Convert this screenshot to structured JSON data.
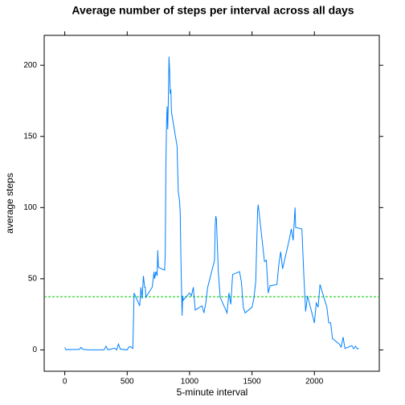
{
  "chart_data": {
    "type": "line",
    "title": "Average number of steps per interval across all days",
    "x_label": "5-minute interval",
    "y_label": "average steps",
    "x": [
      0,
      10,
      20,
      30,
      40,
      50,
      100,
      115,
      130,
      145,
      200,
      215,
      230,
      245,
      300,
      315,
      330,
      345,
      400,
      415,
      430,
      445,
      500,
      515,
      530,
      545,
      550,
      555,
      600,
      610,
      620,
      630,
      640,
      645,
      650,
      700,
      710,
      715,
      720,
      730,
      740,
      745,
      750,
      800,
      805,
      810,
      815,
      820,
      825,
      830,
      835,
      840,
      845,
      850,
      855,
      900,
      905,
      910,
      915,
      920,
      925,
      930,
      935,
      940,
      945,
      950,
      1000,
      1015,
      1030,
      1045,
      1100,
      1115,
      1130,
      1145,
      1200,
      1205,
      1210,
      1215,
      1230,
      1245,
      1300,
      1315,
      1330,
      1345,
      1400,
      1415,
      1430,
      1445,
      1500,
      1515,
      1530,
      1545,
      1550,
      1600,
      1615,
      1630,
      1645,
      1700,
      1715,
      1730,
      1745,
      1800,
      1815,
      1830,
      1845,
      1850,
      1900,
      1915,
      1930,
      1945,
      2000,
      2015,
      2030,
      2045,
      2100,
      2115,
      2130,
      2145,
      2200,
      2215,
      2230,
      2245,
      2300,
      2315,
      2330,
      2345,
      2355
    ],
    "series": [
      {
        "name": "average steps",
        "color": "#0080ff",
        "values": [
          1.7,
          0.1,
          0.1,
          0.5,
          0,
          0.3,
          0.3,
          0.3,
          1.8,
          0.4,
          0,
          0,
          0,
          0,
          0,
          0,
          2.6,
          0.1,
          1.2,
          0,
          4.1,
          0.6,
          0,
          2.2,
          2.1,
          1.0,
          18,
          40,
          31,
          44,
          36,
          52,
          44,
          44,
          37,
          44,
          51,
          55,
          50,
          55,
          52,
          70,
          58,
          56,
          68,
          129,
          158,
          171,
          155,
          177,
          206,
          196,
          180,
          183,
          167,
          143,
          124,
          110,
          108,
          104,
          96,
          66,
          45,
          24,
          38,
          35,
          40,
          38,
          44,
          28,
          31,
          26,
          33,
          44,
          63,
          87,
          94,
          92,
          55,
          37,
          26,
          40,
          32,
          53,
          55,
          48,
          30,
          26,
          30,
          36,
          48,
          98,
          102,
          62,
          63,
          40,
          45,
          46,
          60,
          69,
          57,
          78,
          85,
          77,
          100,
          86,
          85,
          53,
          27,
          38,
          19,
          33,
          30,
          46,
          30,
          19,
          19,
          8,
          4,
          2,
          9,
          1,
          3,
          0.8,
          2.6,
          0.6,
          1.1
        ]
      }
    ],
    "mean_line": {
      "value": 37.38,
      "color": "#00cc00"
    },
    "xlim": [
      -165,
      2520
    ],
    "xticks": [
      0,
      500,
      1000,
      1500,
      2000
    ],
    "ylim": [
      -15,
      221
    ],
    "yticks": [
      0,
      50,
      100,
      150,
      200
    ]
  }
}
